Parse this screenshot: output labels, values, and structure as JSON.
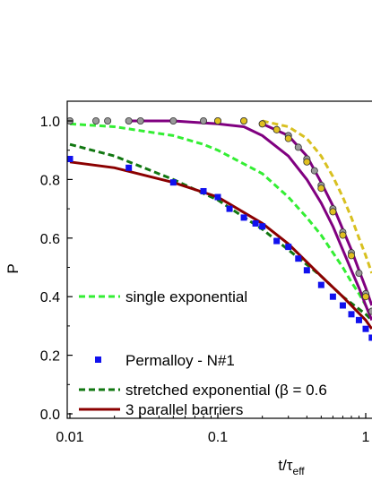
{
  "chart_data": {
    "type": "scatter",
    "title": "",
    "xlabel": "t/τeff",
    "ylabel": "P",
    "x_scale": "log",
    "xlim": [
      0.01,
      1.2
    ],
    "ylim": [
      0.0,
      1.0
    ],
    "x_ticks": [
      {
        "value": 0.01,
        "label": "0.01"
      },
      {
        "value": 0.1,
        "label": "0.1"
      },
      {
        "value": 1,
        "label": "1"
      }
    ],
    "y_ticks": [
      {
        "value": 0.0,
        "label": "0.0"
      },
      {
        "value": 0.2,
        "label": "0.2"
      },
      {
        "value": 0.4,
        "label": "0.4"
      },
      {
        "value": 0.6,
        "label": "0.6"
      },
      {
        "value": 0.8,
        "label": "0.8"
      },
      {
        "value": 1.0,
        "label": "1.0"
      }
    ],
    "grid": false,
    "legend": {
      "placement": "bottom-left",
      "entries": [
        {
          "label": "single exponential",
          "color": "#33ee33",
          "style": "dashed"
        },
        {
          "label": "Permalloy - N#1",
          "color": "#1111ee",
          "style": "square-marker"
        },
        {
          "label": "stretched exponential (β = 0.6",
          "color": "#117711",
          "style": "dashed"
        },
        {
          "label": "3 parallel barriers",
          "color": "#8b0000",
          "style": "solid"
        }
      ]
    },
    "series": [
      {
        "name": "Permalloy - N#1",
        "kind": "markers",
        "marker": "square",
        "color": "#1111ee",
        "points": [
          [
            0.01,
            0.87
          ],
          [
            0.025,
            0.84
          ],
          [
            0.05,
            0.79
          ],
          [
            0.08,
            0.76
          ],
          [
            0.1,
            0.74
          ],
          [
            0.12,
            0.7
          ],
          [
            0.15,
            0.67
          ],
          [
            0.18,
            0.65
          ],
          [
            0.2,
            0.64
          ],
          [
            0.25,
            0.59
          ],
          [
            0.3,
            0.57
          ],
          [
            0.35,
            0.53
          ],
          [
            0.4,
            0.49
          ],
          [
            0.5,
            0.44
          ],
          [
            0.6,
            0.4
          ],
          [
            0.7,
            0.37
          ],
          [
            0.8,
            0.34
          ],
          [
            0.9,
            0.32
          ],
          [
            1.0,
            0.29
          ],
          [
            1.1,
            0.26
          ]
        ]
      },
      {
        "kind": "markers",
        "marker": "circle",
        "color": "#999999",
        "points": [
          [
            0.01,
            1.0
          ],
          [
            0.015,
            1.0
          ],
          [
            0.018,
            1.0
          ],
          [
            0.025,
            1.0
          ],
          [
            0.03,
            1.0
          ],
          [
            0.05,
            1.0
          ],
          [
            0.08,
            1.0
          ],
          [
            0.1,
            1.0
          ],
          [
            0.15,
            1.0
          ],
          [
            0.2,
            0.99
          ],
          [
            0.25,
            0.97
          ],
          [
            0.3,
            0.95
          ],
          [
            0.35,
            0.91
          ],
          [
            0.4,
            0.87
          ],
          [
            0.45,
            0.83
          ],
          [
            0.5,
            0.78
          ],
          [
            0.6,
            0.7
          ],
          [
            0.7,
            0.62
          ],
          [
            0.8,
            0.55
          ],
          [
            0.9,
            0.48
          ],
          [
            1.0,
            0.41
          ],
          [
            1.1,
            0.35
          ]
        ]
      },
      {
        "kind": "markers",
        "marker": "circle",
        "color": "#e0c020",
        "points": [
          [
            0.1,
            1.0
          ],
          [
            0.15,
            1.0
          ],
          [
            0.2,
            0.99
          ],
          [
            0.25,
            0.97
          ],
          [
            0.3,
            0.94
          ],
          [
            0.4,
            0.86
          ],
          [
            0.5,
            0.77
          ],
          [
            0.6,
            0.69
          ],
          [
            0.7,
            0.61
          ],
          [
            0.8,
            0.54
          ],
          [
            1.0,
            0.4
          ]
        ]
      },
      {
        "kind": "line",
        "style": "dashed",
        "color": "#33ee33",
        "points": [
          [
            0.01,
            0.99
          ],
          [
            0.02,
            0.98
          ],
          [
            0.05,
            0.95
          ],
          [
            0.08,
            0.92
          ],
          [
            0.1,
            0.9
          ],
          [
            0.2,
            0.82
          ],
          [
            0.3,
            0.74
          ],
          [
            0.4,
            0.67
          ],
          [
            0.5,
            0.61
          ],
          [
            0.6,
            0.55
          ],
          [
            0.7,
            0.5
          ],
          [
            0.8,
            0.45
          ],
          [
            0.9,
            0.41
          ],
          [
            1.0,
            0.37
          ],
          [
            1.1,
            0.33
          ]
        ]
      },
      {
        "kind": "line",
        "style": "dashed",
        "color": "#117711",
        "points": [
          [
            0.01,
            0.92
          ],
          [
            0.02,
            0.88
          ],
          [
            0.05,
            0.8
          ],
          [
            0.1,
            0.73
          ],
          [
            0.2,
            0.63
          ],
          [
            0.3,
            0.56
          ],
          [
            0.5,
            0.47
          ],
          [
            0.7,
            0.4
          ],
          [
            1.0,
            0.34
          ],
          [
            1.1,
            0.32
          ]
        ]
      },
      {
        "kind": "line",
        "style": "dashed",
        "color": "#d8c020",
        "points": [
          [
            0.2,
            1.0
          ],
          [
            0.3,
            0.98
          ],
          [
            0.4,
            0.94
          ],
          [
            0.5,
            0.88
          ],
          [
            0.6,
            0.81
          ],
          [
            0.7,
            0.74
          ],
          [
            0.8,
            0.67
          ],
          [
            0.9,
            0.6
          ],
          [
            1.0,
            0.54
          ],
          [
            1.1,
            0.48
          ]
        ]
      },
      {
        "kind": "line",
        "style": "solid",
        "color": "#8b0000",
        "points": [
          [
            0.01,
            0.86
          ],
          [
            0.02,
            0.84
          ],
          [
            0.05,
            0.79
          ],
          [
            0.1,
            0.74
          ],
          [
            0.2,
            0.65
          ],
          [
            0.3,
            0.58
          ],
          [
            0.5,
            0.47
          ],
          [
            0.7,
            0.4
          ],
          [
            1.0,
            0.32
          ],
          [
            1.1,
            0.29
          ]
        ]
      },
      {
        "kind": "line",
        "style": "solid",
        "color": "#800080",
        "points": [
          [
            0.025,
            1.0
          ],
          [
            0.05,
            1.0
          ],
          [
            0.1,
            0.99
          ],
          [
            0.15,
            0.98
          ],
          [
            0.2,
            0.95
          ],
          [
            0.3,
            0.88
          ],
          [
            0.4,
            0.8
          ],
          [
            0.5,
            0.72
          ],
          [
            0.6,
            0.64
          ],
          [
            0.7,
            0.56
          ],
          [
            0.8,
            0.49
          ],
          [
            0.9,
            0.43
          ],
          [
            1.0,
            0.37
          ],
          [
            1.1,
            0.32
          ]
        ]
      },
      {
        "kind": "line",
        "style": "solid",
        "color": "#800080",
        "points": [
          [
            0.2,
            0.99
          ],
          [
            0.3,
            0.95
          ],
          [
            0.4,
            0.88
          ],
          [
            0.5,
            0.79
          ],
          [
            0.6,
            0.71
          ],
          [
            0.7,
            0.63
          ],
          [
            0.8,
            0.56
          ],
          [
            0.9,
            0.49
          ],
          [
            1.0,
            0.43
          ],
          [
            1.1,
            0.37
          ]
        ]
      }
    ]
  }
}
